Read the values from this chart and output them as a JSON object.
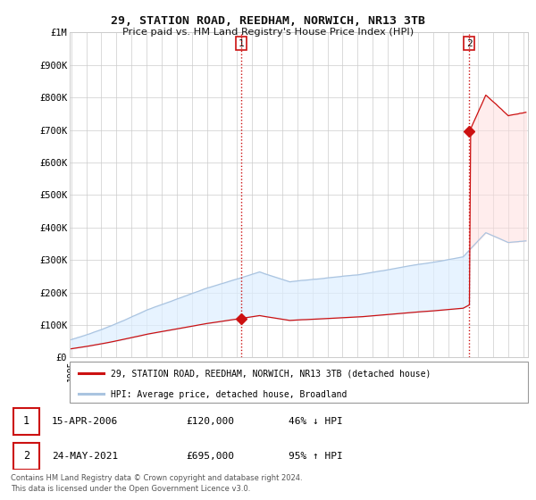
{
  "title": "29, STATION ROAD, REEDHAM, NORWICH, NR13 3TB",
  "subtitle": "Price paid vs. HM Land Registry's House Price Index (HPI)",
  "ylabel_ticks": [
    "£0",
    "£100K",
    "£200K",
    "£300K",
    "£400K",
    "£500K",
    "£600K",
    "£700K",
    "£800K",
    "£900K",
    "£1M"
  ],
  "ytick_values": [
    0,
    100000,
    200000,
    300000,
    400000,
    500000,
    600000,
    700000,
    800000,
    900000,
    1000000
  ],
  "ylim": [
    0,
    1000000
  ],
  "xlim_start": 1994.9,
  "xlim_end": 2025.3,
  "hpi_color": "#aac4e0",
  "property_color": "#cc1111",
  "fill_color": "#ddeeff",
  "sale1_year": 2006.29,
  "sale1_price": 120000,
  "sale2_year": 2021.39,
  "sale2_price": 695000,
  "legend_property": "29, STATION ROAD, REEDHAM, NORWICH, NR13 3TB (detached house)",
  "legend_hpi": "HPI: Average price, detached house, Broadland",
  "table_row1": [
    "1",
    "15-APR-2006",
    "£120,000",
    "46% ↓ HPI"
  ],
  "table_row2": [
    "2",
    "24-MAY-2021",
    "£695,000",
    "95% ↑ HPI"
  ],
  "footnote1": "Contains HM Land Registry data © Crown copyright and database right 2024.",
  "footnote2": "This data is licensed under the Open Government Licence v3.0.",
  "background_color": "#ffffff",
  "grid_color": "#cccccc",
  "sale_label1": "1",
  "sale_label2": "2"
}
